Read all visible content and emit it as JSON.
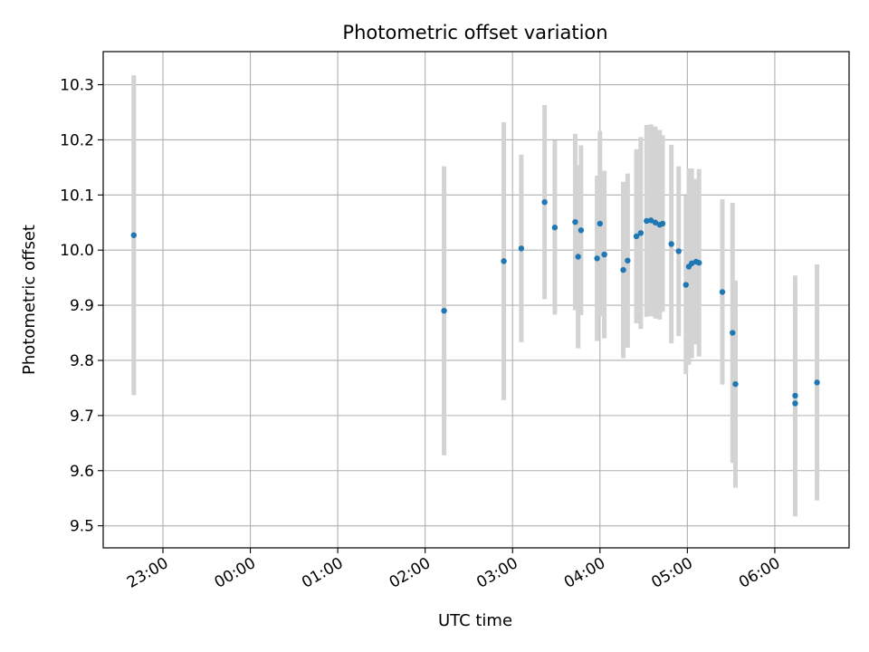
{
  "chart_data": {
    "type": "scatter",
    "title": "Photometric offset variation",
    "xlabel": "UTC time",
    "ylabel": "Photometric offset",
    "x_ticks": [
      "23:00",
      "00:00",
      "01:00",
      "02:00",
      "03:00",
      "04:00",
      "05:00",
      "06:00"
    ],
    "y_ticks": [
      "9.5",
      "9.6",
      "9.7",
      "9.8",
      "9.9",
      "10.0",
      "10.1",
      "10.2",
      "10.3"
    ],
    "xlim": [
      "22:19",
      "06:51"
    ],
    "ylim": [
      9.46,
      10.36
    ],
    "grid": true,
    "point_color": "#1f77b4",
    "errorbar_color": "#d3d3d3",
    "points": [
      {
        "x": "22:40",
        "y": 10.027,
        "err": 0.29
      },
      {
        "x": "02:13",
        "y": 9.89,
        "err": 0.262
      },
      {
        "x": "02:54",
        "y": 9.98,
        "err": 0.252
      },
      {
        "x": "03:06",
        "y": 10.003,
        "err": 0.17
      },
      {
        "x": "03:22",
        "y": 10.087,
        "err": 0.176
      },
      {
        "x": "03:29",
        "y": 10.041,
        "err": 0.158
      },
      {
        "x": "03:43",
        "y": 10.051,
        "err": 0.16
      },
      {
        "x": "03:45",
        "y": 9.988,
        "err": 0.166
      },
      {
        "x": "03:47",
        "y": 10.036,
        "err": 0.154
      },
      {
        "x": "03:58",
        "y": 9.985,
        "err": 0.15
      },
      {
        "x": "04:00",
        "y": 10.048,
        "err": 0.168
      },
      {
        "x": "04:03",
        "y": 9.992,
        "err": 0.152
      },
      {
        "x": "04:16",
        "y": 9.964,
        "err": 0.16
      },
      {
        "x": "04:19",
        "y": 9.981,
        "err": 0.158
      },
      {
        "x": "04:25",
        "y": 10.025,
        "err": 0.158
      },
      {
        "x": "04:28",
        "y": 10.031,
        "err": 0.174
      },
      {
        "x": "04:32",
        "y": 10.053,
        "err": 0.174
      },
      {
        "x": "04:35",
        "y": 10.054,
        "err": 0.174
      },
      {
        "x": "04:38",
        "y": 10.05,
        "err": 0.174
      },
      {
        "x": "04:41",
        "y": 10.046,
        "err": 0.172
      },
      {
        "x": "04:43",
        "y": 10.048,
        "err": 0.16
      },
      {
        "x": "04:49",
        "y": 10.011,
        "err": 0.18
      },
      {
        "x": "04:54",
        "y": 9.998,
        "err": 0.154
      },
      {
        "x": "04:59",
        "y": 9.937,
        "err": 0.162
      },
      {
        "x": "05:01",
        "y": 9.97,
        "err": 0.178
      },
      {
        "x": "05:03",
        "y": 9.976,
        "err": 0.172
      },
      {
        "x": "05:06",
        "y": 9.979,
        "err": 0.15
      },
      {
        "x": "05:08",
        "y": 9.977,
        "err": 0.17
      },
      {
        "x": "05:24",
        "y": 9.924,
        "err": 0.168
      },
      {
        "x": "05:31",
        "y": 9.85,
        "err": 0.236
      },
      {
        "x": "05:33",
        "y": 9.757,
        "err": 0.188
      },
      {
        "x": "06:14",
        "y": 9.736,
        "err": 0.218
      },
      {
        "x": "06:14",
        "y": 9.722,
        "err": 0.205
      },
      {
        "x": "06:29",
        "y": 9.76,
        "err": 0.214
      }
    ]
  }
}
